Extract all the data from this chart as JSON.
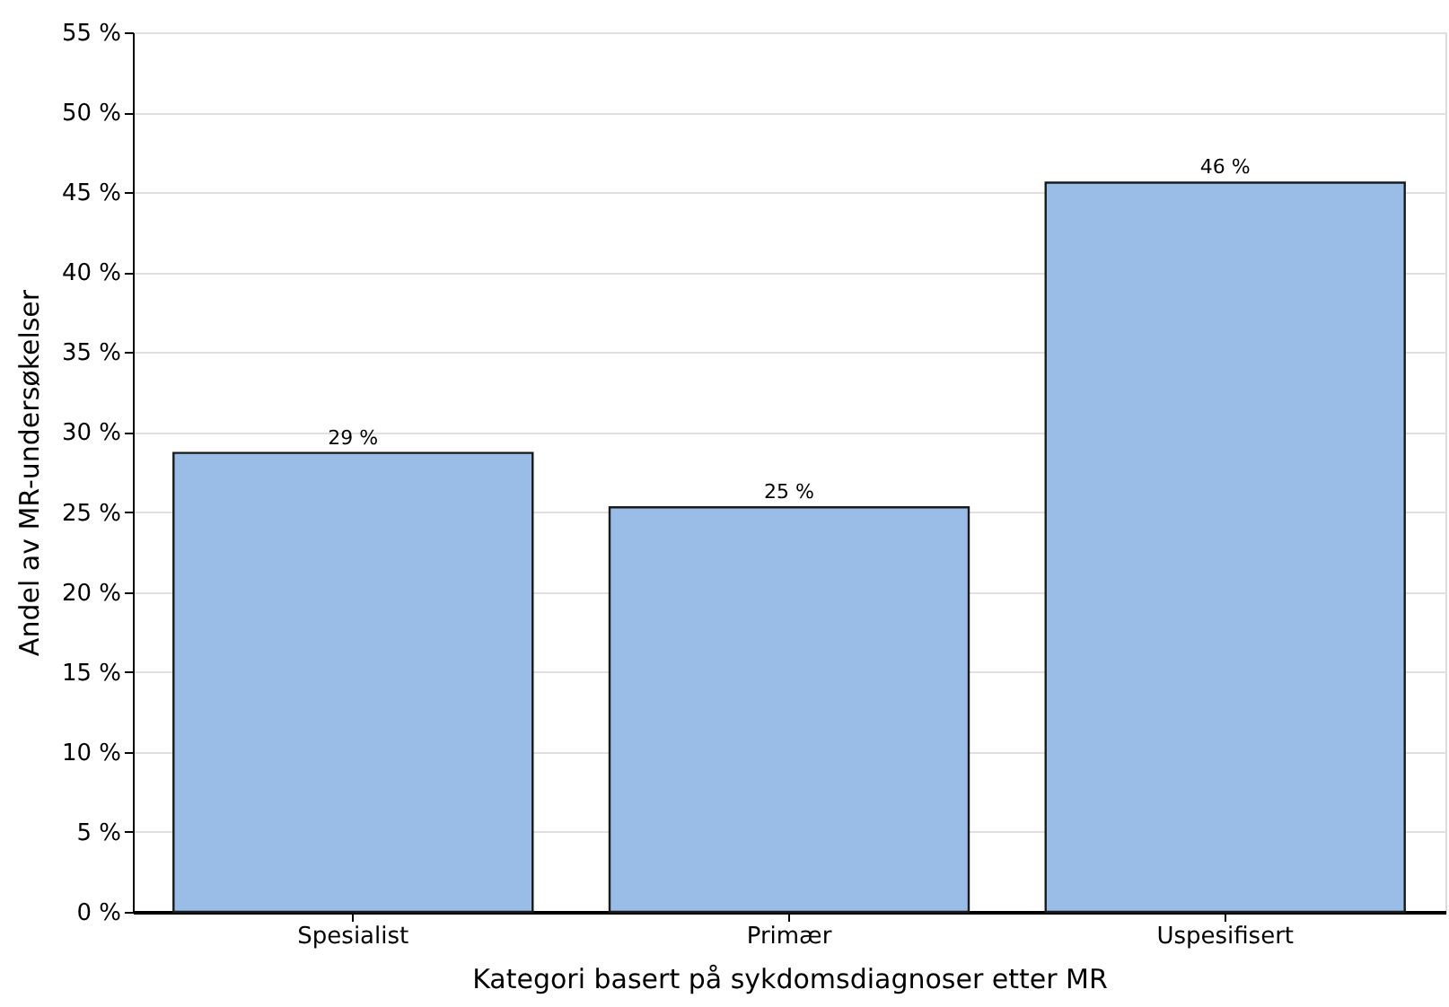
{
  "chart_data": {
    "type": "bar",
    "xlabel": "Kategori basert på sykdomsdiagnoser etter MR",
    "ylabel": "Andel av MR-undersøkelser",
    "categories": [
      "Spesialist",
      "Primær",
      "Uspesifisert"
    ],
    "values": [
      28.7,
      25.3,
      45.6
    ],
    "value_labels": [
      "29 %",
      "25 %",
      "46 %"
    ],
    "color": "#99bde6",
    "ylim": [
      0,
      55
    ],
    "yticks": [
      {
        "value": 0,
        "label": "0 %"
      },
      {
        "value": 5,
        "label": "5 %"
      },
      {
        "value": 10,
        "label": "10 %"
      },
      {
        "value": 15,
        "label": "15 %"
      },
      {
        "value": 20,
        "label": "20 %"
      },
      {
        "value": 25,
        "label": "25 %"
      },
      {
        "value": 30,
        "label": "30 %"
      },
      {
        "value": 35,
        "label": "35 %"
      },
      {
        "value": 40,
        "label": "40 %"
      },
      {
        "value": 45,
        "label": "45 %"
      },
      {
        "value": 50,
        "label": "50 %"
      },
      {
        "value": 55,
        "label": "55 %"
      }
    ],
    "grid": "y"
  }
}
